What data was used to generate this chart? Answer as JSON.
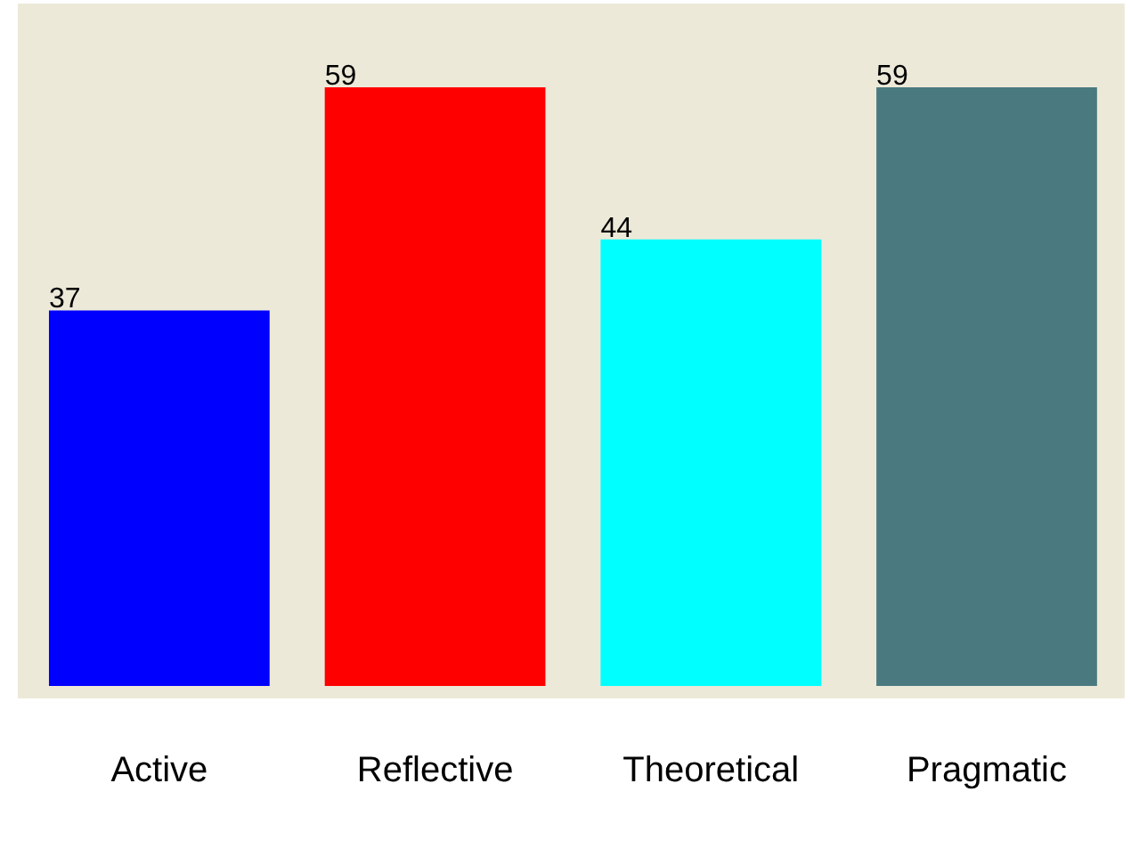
{
  "chart_data": {
    "type": "bar",
    "categories": [
      "Active",
      "Reflective",
      "Theoretical",
      "Pragmatic"
    ],
    "values": [
      37,
      59,
      44,
      59
    ],
    "colors": [
      "#0000ff",
      "#ff0000",
      "#00ffff",
      "#4a7a80"
    ],
    "data_labels": true,
    "tick_labels": "x",
    "grid": false,
    "legend": false
  }
}
